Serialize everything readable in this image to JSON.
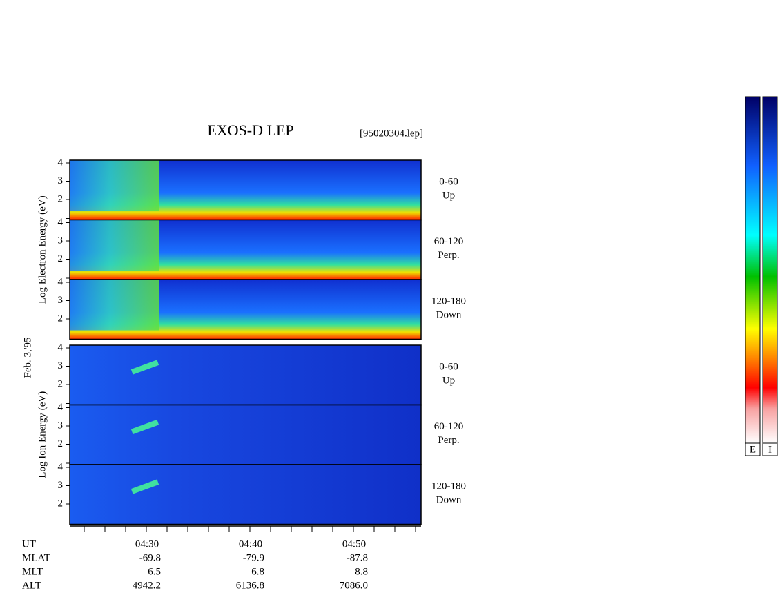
{
  "header": {
    "title": "EXOS-D LEP",
    "file": "[95020304.lep]"
  },
  "date": "Feb. 3,'95",
  "groups": [
    {
      "label": "Log Electron Energy (eV)",
      "panels": [
        {
          "angle": "0-60",
          "direction": "Up",
          "yticks": [
            "4",
            "3",
            "2"
          ]
        },
        {
          "angle": "60-120",
          "direction": "Perp.",
          "yticks": [
            "4",
            "3",
            "2"
          ]
        },
        {
          "angle": "120-180",
          "direction": "Down",
          "yticks": [
            "4",
            "3",
            "2"
          ]
        }
      ]
    },
    {
      "label": "Log Ion Energy (eV)",
      "panels": [
        {
          "angle": "0-60",
          "direction": "Up",
          "yticks": [
            "4",
            "3",
            "2"
          ]
        },
        {
          "angle": "60-120",
          "direction": "Perp.",
          "yticks": [
            "4",
            "3",
            "2"
          ]
        },
        {
          "angle": "120-180",
          "direction": "Down",
          "yticks": [
            "4",
            "3",
            "2"
          ]
        }
      ]
    }
  ],
  "time_axis": {
    "rows": [
      {
        "name": "UT",
        "values": [
          "04:30",
          "04:40",
          "04:50"
        ]
      },
      {
        "name": "MLAT",
        "values": [
          "-69.8",
          "-79.9",
          "-87.8"
        ]
      },
      {
        "name": "MLT",
        "values": [
          "6.5",
          "6.8",
          "8.8"
        ]
      },
      {
        "name": "ALT",
        "values": [
          "4942.2",
          "6136.8",
          "7086.0"
        ]
      }
    ]
  },
  "colorbar": {
    "labels": [
      "E",
      "I"
    ]
  }
}
